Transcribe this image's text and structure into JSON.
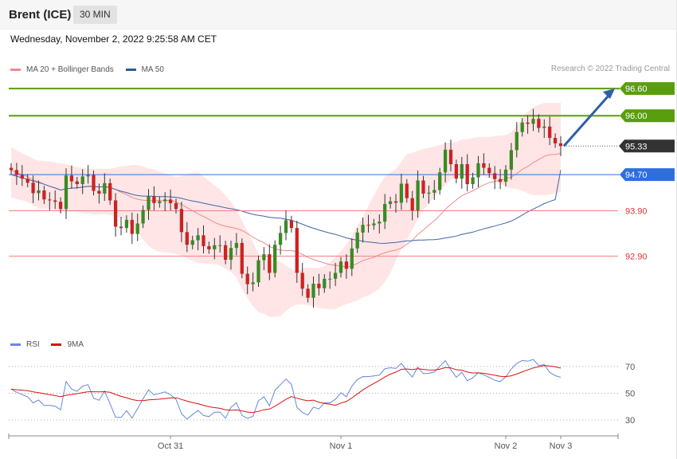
{
  "header": {
    "title": "Brent (ICE)",
    "timeframe": "30 MIN"
  },
  "timestamp": "Wednesday, November 2, 2022 9:25:58 AM CET",
  "legend": {
    "main": [
      {
        "label": "MA 20 + Bollinger Bands",
        "color": "#f08a8a"
      },
      {
        "label": "MA 50",
        "color": "#2f5b9a"
      }
    ],
    "rsi": [
      {
        "label": "RSI",
        "color": "#6688dd"
      },
      {
        "label": "9MA",
        "color": "#dd1111"
      }
    ]
  },
  "credit": "Research © 2022 Trading Central",
  "chart_data": {
    "type": "candlestick",
    "instrument": "Brent (ICE)",
    "interval": "30 MIN",
    "ylim": [
      91.2,
      97.2
    ],
    "x_ticks": [
      {
        "label": "Oct 31",
        "index": 29
      },
      {
        "label": "Nov 1",
        "index": 60
      },
      {
        "label": "Nov 2",
        "index": 90
      },
      {
        "label": "Nov 3",
        "index": 100
      }
    ],
    "levels": [
      {
        "value": 96.6,
        "label": "96.60",
        "color": "#5a9e0f",
        "style": "solid-badge"
      },
      {
        "value": 96.0,
        "label": "96.00",
        "color": "#5a9e0f",
        "style": "solid-badge"
      },
      {
        "value": 95.33,
        "label": "95.33",
        "color": "#333333",
        "style": "dotted-badge"
      },
      {
        "value": 94.7,
        "label": "94.70",
        "color": "#2f6fdd",
        "style": "solid-badge"
      },
      {
        "value": 93.9,
        "label": "93.90",
        "color": "#dd3333",
        "style": "thin-text"
      },
      {
        "value": 92.9,
        "label": "92.90",
        "color": "#dd3333",
        "style": "thin-text"
      }
    ],
    "projection_arrow": {
      "from_value": 95.33,
      "to_value": 96.6
    },
    "close": [
      94.8,
      94.69,
      94.61,
      94.52,
      94.29,
      94.35,
      94.15,
      94.13,
      94.1,
      93.94,
      94.68,
      94.55,
      94.49,
      94.66,
      94.69,
      94.34,
      94.28,
      94.51,
      94.13,
      93.55,
      93.52,
      93.7,
      93.39,
      93.62,
      93.92,
      94.22,
      94.07,
      94.11,
      94.15,
      94.07,
      93.94,
      93.43,
      93.15,
      93.25,
      93.36,
      93.12,
      93.05,
      93.14,
      93.14,
      92.82,
      93.08,
      93.19,
      92.51,
      92.28,
      92.32,
      92.81,
      92.94,
      92.53,
      93.15,
      93.41,
      93.69,
      93.52,
      92.53,
      92.18,
      91.98,
      92.29,
      92.19,
      92.4,
      92.4,
      92.53,
      92.78,
      92.62,
      93.07,
      93.42,
      93.59,
      93.58,
      93.62,
      93.66,
      94.05,
      94.11,
      94.08,
      94.5,
      94.18,
      93.91,
      94.57,
      94.28,
      94.3,
      94.36,
      94.75,
      95.25,
      94.93,
      94.61,
      94.93,
      94.49,
      94.64,
      94.95,
      94.85,
      94.73,
      94.6,
      94.54,
      94.81,
      95.24,
      95.64,
      95.85,
      95.82,
      95.93,
      95.73,
      95.76,
      95.51,
      95.39,
      95.33
    ],
    "bands": {
      "upper": [
        95.3,
        95.24,
        95.17,
        95.11,
        95.05,
        95.01,
        95.0,
        94.99,
        94.97,
        94.95,
        94.93,
        94.9,
        94.86,
        94.85,
        94.83,
        94.83,
        94.83,
        94.83,
        94.83,
        94.85,
        94.88,
        94.89,
        94.91,
        94.91,
        94.88,
        94.84,
        94.81,
        94.76,
        94.73,
        94.69,
        94.65,
        94.67,
        94.71,
        94.74,
        94.75,
        94.66,
        94.56,
        94.47,
        94.37,
        94.24,
        94.1,
        93.92,
        93.68,
        93.45,
        93.2,
        92.95,
        92.84,
        92.82,
        92.81,
        92.77,
        92.69,
        92.6,
        92.57,
        92.63,
        92.65,
        92.64,
        92.64,
        92.68,
        92.75,
        92.89,
        93.0,
        93.16,
        93.35,
        93.57,
        93.76,
        94.01,
        94.24,
        94.46,
        94.65,
        94.74,
        94.82,
        94.99,
        95.15,
        95.18,
        95.23,
        95.27,
        95.29,
        95.32,
        95.35,
        95.4,
        95.41,
        95.42,
        95.47,
        95.48,
        95.51,
        95.53,
        95.53,
        95.53,
        95.55,
        95.56,
        95.57,
        95.64,
        95.78,
        95.94,
        96.09,
        96.19,
        96.24,
        96.28,
        96.29,
        96.28,
        96.29
      ],
      "lower": [
        94.2,
        94.16,
        94.13,
        94.1,
        94.02,
        93.95,
        93.95,
        93.94,
        93.92,
        93.9,
        93.89,
        93.88,
        93.87,
        93.85,
        93.84,
        93.82,
        93.82,
        93.83,
        93.81,
        93.79,
        93.75,
        93.66,
        93.54,
        93.42,
        93.27,
        93.13,
        93.04,
        92.99,
        92.98,
        92.97,
        92.95,
        92.91,
        92.85,
        92.8,
        92.75,
        92.74,
        92.73,
        92.72,
        92.7,
        92.62,
        92.55,
        92.43,
        92.17,
        91.98,
        91.79,
        91.66,
        91.63,
        91.56,
        91.56,
        91.58,
        91.68,
        91.78,
        91.83,
        91.84,
        91.81,
        91.8,
        91.76,
        91.74,
        91.73,
        91.73,
        91.79,
        91.84,
        91.88,
        91.92,
        91.99,
        92.03,
        92.1,
        92.18,
        92.33,
        92.52,
        92.8,
        93.04,
        93.25,
        93.49,
        93.7,
        93.92,
        94.07,
        94.2,
        94.36,
        94.47,
        94.58,
        94.66,
        94.7,
        94.73,
        94.71,
        94.69,
        94.67,
        94.63,
        94.57,
        94.5,
        94.44,
        94.39,
        94.38,
        94.34,
        94.29,
        94.25,
        94.24,
        94.25,
        94.26,
        94.29,
        94.31
      ]
    },
    "ma50_start": 94.7,
    "ma50_end": 94.8,
    "rsi": {
      "ylim": [
        20,
        80
      ],
      "y_ticks": [
        70,
        50,
        30
      ],
      "rsi_values": [
        53.0,
        50.8,
        49.0,
        47.4,
        42.8,
        45.0,
        40.9,
        40.9,
        40.4,
        37.7,
        58.8,
        53.1,
        51.5,
        55.3,
        56.4,
        46.3,
        44.8,
        51.7,
        42.1,
        32.1,
        32.0,
        37.1,
        31.6,
        38.5,
        45.9,
        52.5,
        48.8,
        49.9,
        51.0,
        48.9,
        45.4,
        34.8,
        30.8,
        34.1,
        37.3,
        33.4,
        32.6,
        35.9,
        36.0,
        31.4,
        39.6,
        42.8,
        33.5,
        31.2,
        32.8,
        44.4,
        47.3,
        40.7,
        52.2,
        56.4,
        60.5,
        56.7,
        39.6,
        35.7,
        33.7,
        39.7,
        38.3,
        42.9,
        42.8,
        45.5,
        50.4,
        47.4,
        55.2,
        60.2,
        62.5,
        62.4,
        62.9,
        63.5,
        68.3,
        69.0,
        68.5,
        72.3,
        66.6,
        62.1,
        69.5,
        64.6,
        64.9,
        65.8,
        70.1,
        74.3,
        67.7,
        61.9,
        65.7,
        59.3,
        61.5,
        65.3,
        63.7,
        61.8,
        59.7,
        58.7,
        62.3,
        68.0,
        72.3,
        74.4,
        73.9,
        75.2,
        70.7,
        71.3,
        65.6,
        63.1,
        61.9
      ],
      "ma_values": [
        53.0,
        52.6,
        52.3,
        51.9,
        51.0,
        50.5,
        49.7,
        49.0,
        48.3,
        47.4,
        48.5,
        49.1,
        49.7,
        50.4,
        51.1,
        51.1,
        51.0,
        51.2,
        50.7,
        49.1,
        47.7,
        46.7,
        45.3,
        44.6,
        44.5,
        45.1,
        45.3,
        45.6,
        46.1,
        46.5,
        46.6,
        45.4,
        44.1,
        43.1,
        42.2,
        41.0,
        39.9,
        39.3,
        38.8,
        37.7,
        37.4,
        37.5,
        36.9,
        36.0,
        35.6,
        36.5,
        37.7,
        38.2,
        40.3,
        42.8,
        45.5,
        47.5,
        46.3,
        45.2,
        44.4,
        44.9,
        43.3,
        42.4,
        41.8,
        41.0,
        42.7,
        43.8,
        46.5,
        49.5,
        52.5,
        55.0,
        57.3,
        59.6,
        62.1,
        64.2,
        65.8,
        67.8,
        68.1,
        67.6,
        68.3,
        67.8,
        67.4,
        67.3,
        68.0,
        69.1,
        68.9,
        67.5,
        67.2,
        65.8,
        65.1,
        65.2,
        64.9,
        64.2,
        63.4,
        62.6,
        62.4,
        63.0,
        64.3,
        66.0,
        67.4,
        68.9,
        69.7,
        70.6,
        70.4,
        69.7,
        68.8
      ]
    }
  }
}
